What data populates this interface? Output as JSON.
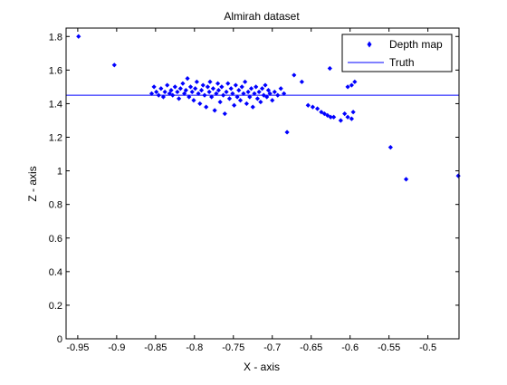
{
  "chart_data": {
    "type": "scatter",
    "title": "Almirah dataset",
    "xlabel": "X - axis",
    "ylabel": "Z - axis",
    "xlim": [
      -0.965,
      -0.46
    ],
    "ylim": [
      0,
      1.85
    ],
    "xticks": [
      -0.95,
      -0.9,
      -0.85,
      -0.8,
      -0.75,
      -0.7,
      -0.65,
      -0.6,
      -0.55,
      -0.5
    ],
    "xtick_labels": [
      "-0.95",
      "-0.9",
      "-0.85",
      "-0.8",
      "-0.75",
      "-0.7",
      "-0.65",
      "-0.6",
      "-0.55",
      "-0.5"
    ],
    "yticks": [
      0,
      0.2,
      0.4,
      0.6,
      0.8,
      1,
      1.2,
      1.4,
      1.6,
      1.8
    ],
    "ytick_labels": [
      "0",
      "0.2",
      "0.4",
      "0.6",
      "0.8",
      "1",
      "1.2",
      "1.4",
      "1.6",
      "1.8"
    ],
    "grid": false,
    "legend_position": "top-right",
    "colors": {
      "series": "#0000ff",
      "axes": "#000000"
    },
    "series": [
      {
        "name": "Depth map",
        "kind": "points",
        "marker": "diamond",
        "points": [
          [
            -0.949,
            1.8
          ],
          [
            -0.903,
            1.63
          ],
          [
            -0.855,
            1.46
          ],
          [
            -0.852,
            1.5
          ],
          [
            -0.849,
            1.47
          ],
          [
            -0.846,
            1.45
          ],
          [
            -0.843,
            1.49
          ],
          [
            -0.84,
            1.44
          ],
          [
            -0.838,
            1.47
          ],
          [
            -0.835,
            1.51
          ],
          [
            -0.832,
            1.46
          ],
          [
            -0.83,
            1.48
          ],
          [
            -0.828,
            1.45
          ],
          [
            -0.825,
            1.5
          ],
          [
            -0.822,
            1.47
          ],
          [
            -0.82,
            1.43
          ],
          [
            -0.818,
            1.49
          ],
          [
            -0.815,
            1.52
          ],
          [
            -0.813,
            1.46
          ],
          [
            -0.811,
            1.48
          ],
          [
            -0.809,
            1.55
          ],
          [
            -0.807,
            1.44
          ],
          [
            -0.805,
            1.5
          ],
          [
            -0.803,
            1.47
          ],
          [
            -0.801,
            1.42
          ],
          [
            -0.799,
            1.49
          ],
          [
            -0.797,
            1.53
          ],
          [
            -0.795,
            1.46
          ],
          [
            -0.793,
            1.4
          ],
          [
            -0.791,
            1.48
          ],
          [
            -0.789,
            1.51
          ],
          [
            -0.787,
            1.45
          ],
          [
            -0.785,
            1.38
          ],
          [
            -0.783,
            1.5
          ],
          [
            -0.781,
            1.47
          ],
          [
            -0.78,
            1.53
          ],
          [
            -0.778,
            1.44
          ],
          [
            -0.776,
            1.49
          ],
          [
            -0.774,
            1.36
          ],
          [
            -0.772,
            1.46
          ],
          [
            -0.77,
            1.52
          ],
          [
            -0.769,
            1.48
          ],
          [
            -0.767,
            1.41
          ],
          [
            -0.765,
            1.5
          ],
          [
            -0.763,
            1.45
          ],
          [
            -0.761,
            1.34
          ],
          [
            -0.759,
            1.47
          ],
          [
            -0.757,
            1.52
          ],
          [
            -0.755,
            1.43
          ],
          [
            -0.753,
            1.49
          ],
          [
            -0.751,
            1.46
          ],
          [
            -0.749,
            1.39
          ],
          [
            -0.747,
            1.51
          ],
          [
            -0.745,
            1.44
          ],
          [
            -0.743,
            1.48
          ],
          [
            -0.741,
            1.42
          ],
          [
            -0.739,
            1.5
          ],
          [
            -0.737,
            1.46
          ],
          [
            -0.735,
            1.53
          ],
          [
            -0.733,
            1.4
          ],
          [
            -0.731,
            1.47
          ],
          [
            -0.729,
            1.44
          ],
          [
            -0.727,
            1.49
          ],
          [
            -0.725,
            1.38
          ],
          [
            -0.723,
            1.46
          ],
          [
            -0.721,
            1.5
          ],
          [
            -0.719,
            1.43
          ],
          [
            -0.717,
            1.47
          ],
          [
            -0.715,
            1.41
          ],
          [
            -0.713,
            1.49
          ],
          [
            -0.711,
            1.45
          ],
          [
            -0.709,
            1.51
          ],
          [
            -0.707,
            1.44
          ],
          [
            -0.705,
            1.48
          ],
          [
            -0.703,
            1.46
          ],
          [
            -0.7,
            1.42
          ],
          [
            -0.697,
            1.47
          ],
          [
            -0.693,
            1.45
          ],
          [
            -0.689,
            1.49
          ],
          [
            -0.685,
            1.46
          ],
          [
            -0.681,
            1.23
          ],
          [
            -0.672,
            1.57
          ],
          [
            -0.662,
            1.53
          ],
          [
            -0.654,
            1.39
          ],
          [
            -0.648,
            1.38
          ],
          [
            -0.642,
            1.37
          ],
          [
            -0.637,
            1.35
          ],
          [
            -0.633,
            1.34
          ],
          [
            -0.629,
            1.33
          ],
          [
            -0.625,
            1.32
          ],
          [
            -0.621,
            1.32
          ],
          [
            -0.626,
            1.61
          ],
          [
            -0.612,
            1.3
          ],
          [
            -0.607,
            1.34
          ],
          [
            -0.603,
            1.32
          ],
          [
            -0.598,
            1.31
          ],
          [
            -0.596,
            1.35
          ],
          [
            -0.603,
            1.5
          ],
          [
            -0.598,
            1.51
          ],
          [
            -0.594,
            1.53
          ],
          [
            -0.548,
            1.14
          ],
          [
            -0.528,
            0.95
          ],
          [
            -0.461,
            0.97
          ]
        ]
      },
      {
        "name": "Truth",
        "kind": "hline",
        "y": 1.45
      }
    ]
  }
}
